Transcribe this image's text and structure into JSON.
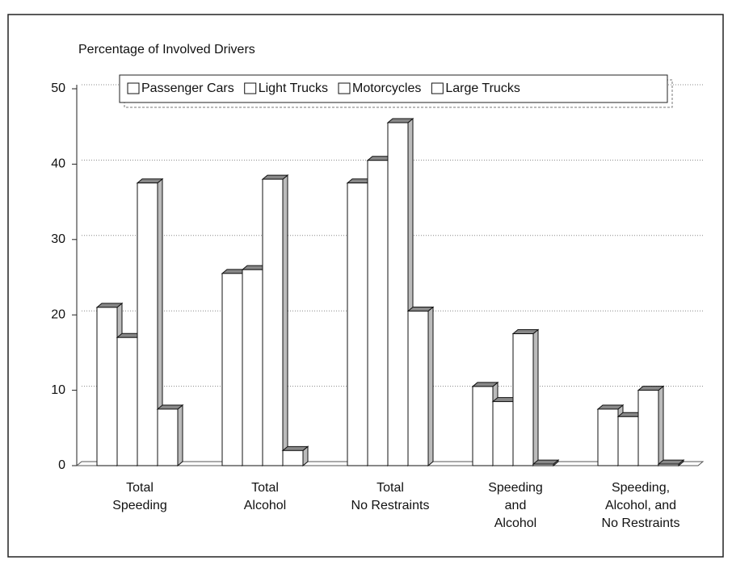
{
  "chart_data": {
    "type": "bar3d",
    "y_axis_label": "Percentage of Involved Drivers",
    "categories": [
      "Total\nSpeeding",
      "Total\nAlcohol",
      "Total\nNo Restraints",
      "Speeding\nand\nAlcohol",
      "Speeding,\nAlcohol, and\nNo Restraints"
    ],
    "series": [
      {
        "name": "Passenger Cars",
        "color": "#ffffff",
        "values": [
          21,
          25.5,
          37.5,
          10.5,
          7.5
        ]
      },
      {
        "name": "Light Trucks",
        "color": "#ffffff",
        "values": [
          17,
          26,
          40.5,
          8.5,
          6.5
        ]
      },
      {
        "name": "Motorcycles",
        "color": "#ffffff",
        "values": [
          37.5,
          38,
          45.5,
          17.5,
          10
        ]
      },
      {
        "name": "Large Trucks",
        "color": "#ffffff",
        "values": [
          7.5,
          2,
          20.5,
          0.2,
          0.2
        ]
      }
    ],
    "ylim": [
      0,
      50
    ],
    "yticks": [
      0,
      10,
      20,
      30,
      40,
      50
    ],
    "grid": true,
    "legend": "top"
  }
}
